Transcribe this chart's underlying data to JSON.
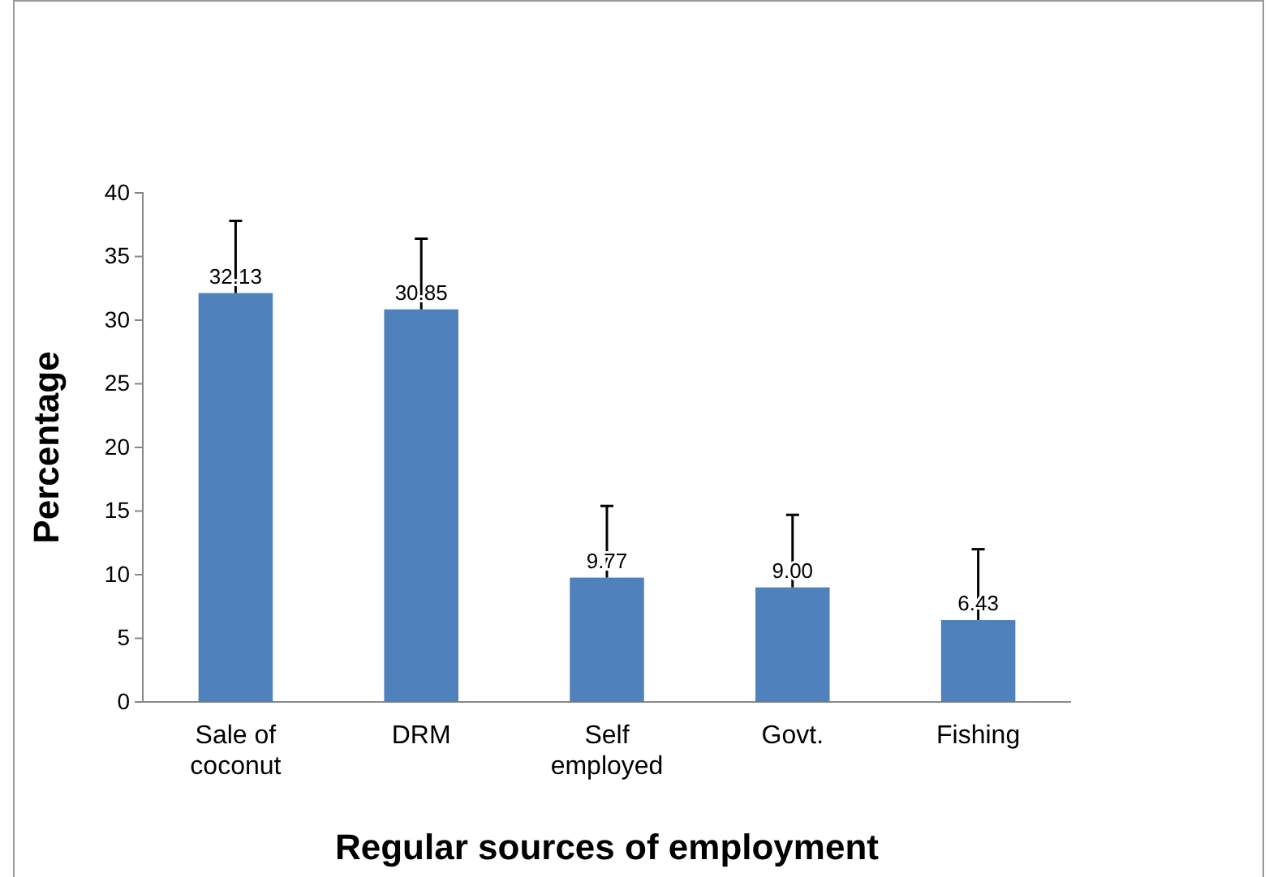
{
  "chart_data": {
    "type": "bar",
    "xlabel": "Regular sources of employment",
    "ylabel": "Percentage",
    "categories": [
      "Sale of coconut",
      "DRM",
      "Self employed",
      "Govt.",
      "Fishing"
    ],
    "values": [
      32.13,
      30.85,
      9.77,
      9.0,
      6.43
    ],
    "value_labels": [
      "32.13",
      "30.85",
      "9.77",
      "9.00",
      "6.43"
    ],
    "errors": [
      [
        32.13,
        37.8
      ],
      [
        30.85,
        36.4
      ],
      [
        9.77,
        15.4
      ],
      [
        9.0,
        14.7
      ],
      [
        6.43,
        12.0
      ]
    ],
    "color": "#4f81bd",
    "ylim": [
      0,
      40
    ],
    "yticks": [
      0,
      5,
      10,
      15,
      20,
      25,
      30,
      35,
      40
    ],
    "grid": false
  }
}
